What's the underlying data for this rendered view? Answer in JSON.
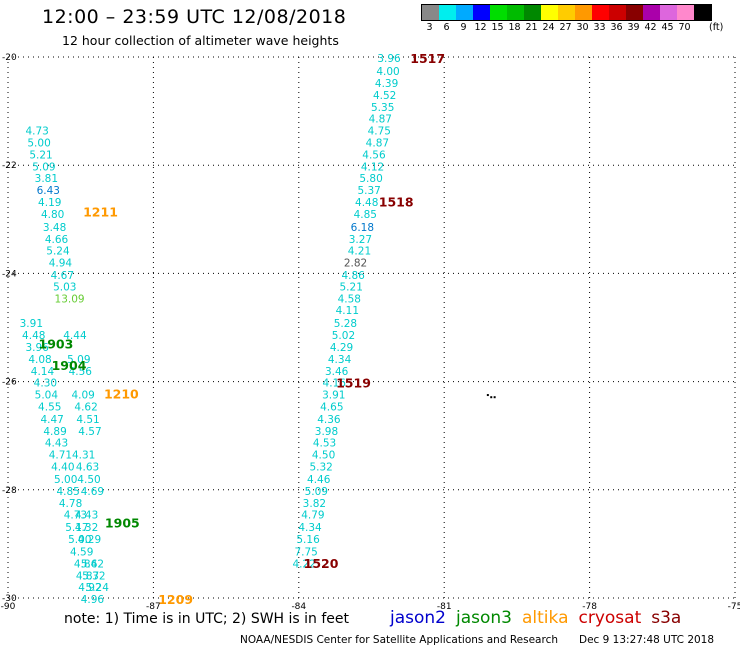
{
  "title": "12:00 – 23:59 UTC 12/08/2018",
  "subtitle": "12 hour collection of altimeter wave heights",
  "scale": {
    "unit": "(ft)",
    "levels": [
      {
        "label": "3",
        "color": "#888888"
      },
      {
        "label": "6",
        "color": "#00eeee"
      },
      {
        "label": "9",
        "color": "#00aaff"
      },
      {
        "label": "12",
        "color": "#0000ff"
      },
      {
        "label": "15",
        "color": "#00dd00"
      },
      {
        "label": "18",
        "color": "#00bb00"
      },
      {
        "label": "21",
        "color": "#008800"
      },
      {
        "label": "24",
        "color": "#ffff00"
      },
      {
        "label": "27",
        "color": "#ffcc00"
      },
      {
        "label": "30",
        "color": "#ff9900"
      },
      {
        "label": "33",
        "color": "#ff0000"
      },
      {
        "label": "36",
        "color": "#cc0000"
      },
      {
        "label": "39",
        "color": "#880000"
      },
      {
        "label": "42",
        "color": "#aa00aa"
      },
      {
        "label": "45",
        "color": "#dd66dd"
      },
      {
        "label": "70",
        "color": "#ff88cc"
      },
      {
        "label": "",
        "color": "#000000"
      }
    ]
  },
  "axes": {
    "lon_ticks": [
      "-90",
      "-87",
      "-84",
      "-81",
      "-78",
      "-75"
    ],
    "lat_ticks": [
      "-20",
      "-22",
      "-24",
      "-26",
      "-28",
      "-30"
    ]
  },
  "note": "note: 1) Time is in UTC; 2) SWH is in feet",
  "legend": [
    {
      "label": "jason2",
      "color": "#0000cc"
    },
    {
      "label": "jason3",
      "color": "#008800"
    },
    {
      "label": "altika",
      "color": "#ff9900"
    },
    {
      "label": "cryosat",
      "color": "#cc0000"
    },
    {
      "label": "s3a",
      "color": "#880000"
    }
  ],
  "credit": "NOAA/NESDIS Center for Satellite Applications and Research",
  "generated": "Dec  9 13:27:48 UTC 2018",
  "colors": {
    "cyan": "#00cccc",
    "blue": "#0077cc",
    "gray": "#555555",
    "lightgreen": "#66cc33",
    "green": "#008800",
    "orange": "#ff9900",
    "darkred": "#880000"
  },
  "swath_east": [
    {
      "v": "3.96",
      "lon": -82.38,
      "lat": -20.02,
      "c": "cyan"
    },
    {
      "v": "4.00",
      "lon": -82.4,
      "lat": -20.26,
      "c": "cyan"
    },
    {
      "v": "4.39",
      "lon": -82.43,
      "lat": -20.48,
      "c": "cyan"
    },
    {
      "v": "4.52",
      "lon": -82.47,
      "lat": -20.7,
      "c": "cyan"
    },
    {
      "v": "5.35",
      "lon": -82.51,
      "lat": -20.92,
      "c": "cyan"
    },
    {
      "v": "4.87",
      "lon": -82.56,
      "lat": -21.14,
      "c": "cyan"
    },
    {
      "v": "4.75",
      "lon": -82.58,
      "lat": -21.36,
      "c": "cyan"
    },
    {
      "v": "4.87",
      "lon": -82.62,
      "lat": -21.58,
      "c": "cyan"
    },
    {
      "v": "4.56",
      "lon": -82.69,
      "lat": -21.8,
      "c": "cyan"
    },
    {
      "v": "4.12",
      "lon": -82.72,
      "lat": -22.02,
      "c": "cyan"
    },
    {
      "v": "5.80",
      "lon": -82.75,
      "lat": -22.24,
      "c": "cyan"
    },
    {
      "v": "5.37",
      "lon": -82.79,
      "lat": -22.46,
      "c": "cyan"
    },
    {
      "v": "4.48",
      "lon": -82.84,
      "lat": -22.68,
      "c": "cyan"
    },
    {
      "v": "4.85",
      "lon": -82.87,
      "lat": -22.9,
      "c": "cyan"
    },
    {
      "v": "6.18",
      "lon": -82.93,
      "lat": -23.14,
      "c": "blue"
    },
    {
      "v": "3.27",
      "lon": -82.97,
      "lat": -23.36,
      "c": "cyan"
    },
    {
      "v": "4.21",
      "lon": -82.99,
      "lat": -23.58,
      "c": "cyan"
    },
    {
      "v": "2.82",
      "lon": -83.07,
      "lat": -23.8,
      "c": "gray"
    },
    {
      "v": "4.86",
      "lon": -83.12,
      "lat": -24.03,
      "c": "cyan"
    },
    {
      "v": "5.21",
      "lon": -83.16,
      "lat": -24.24,
      "c": "cyan"
    },
    {
      "v": "4.58",
      "lon": -83.2,
      "lat": -24.46,
      "c": "cyan"
    },
    {
      "v": "4.11",
      "lon": -83.24,
      "lat": -24.68,
      "c": "cyan"
    },
    {
      "v": "5.28",
      "lon": -83.28,
      "lat": -24.92,
      "c": "cyan"
    },
    {
      "v": "5.02",
      "lon": -83.32,
      "lat": -25.14,
      "c": "cyan"
    },
    {
      "v": "4.29",
      "lon": -83.36,
      "lat": -25.36,
      "c": "cyan"
    },
    {
      "v": "4.34",
      "lon": -83.4,
      "lat": -25.58,
      "c": "cyan"
    },
    {
      "v": "3.46",
      "lon": -83.46,
      "lat": -25.8,
      "c": "cyan"
    },
    {
      "v": "4.16",
      "lon": -83.51,
      "lat": -26.02,
      "c": "cyan"
    },
    {
      "v": "3.91",
      "lon": -83.52,
      "lat": -26.24,
      "c": "cyan"
    },
    {
      "v": "4.65",
      "lon": -83.56,
      "lat": -26.46,
      "c": "cyan"
    },
    {
      "v": "4.36",
      "lon": -83.62,
      "lat": -26.69,
      "c": "cyan"
    },
    {
      "v": "3.98",
      "lon": -83.67,
      "lat": -26.91,
      "c": "cyan"
    },
    {
      "v": "4.53",
      "lon": -83.71,
      "lat": -27.13,
      "c": "cyan"
    },
    {
      "v": "4.50",
      "lon": -83.73,
      "lat": -27.35,
      "c": "cyan"
    },
    {
      "v": "5.32",
      "lon": -83.78,
      "lat": -27.57,
      "c": "cyan"
    },
    {
      "v": "4.46",
      "lon": -83.83,
      "lat": -27.8,
      "c": "cyan"
    },
    {
      "v": "5.09",
      "lon": -83.88,
      "lat": -28.02,
      "c": "cyan"
    },
    {
      "v": "3.82",
      "lon": -83.92,
      "lat": -28.24,
      "c": "cyan"
    },
    {
      "v": "4.79",
      "lon": -83.95,
      "lat": -28.46,
      "c": "cyan"
    },
    {
      "v": "4.34",
      "lon": -84.01,
      "lat": -28.69,
      "c": "cyan"
    },
    {
      "v": "5.16",
      "lon": -84.05,
      "lat": -28.91,
      "c": "cyan"
    },
    {
      "v": "7.75",
      "lon": -84.09,
      "lat": -29.14,
      "c": "cyan"
    },
    {
      "v": "4.22",
      "lon": -84.13,
      "lat": -29.36,
      "c": "cyan"
    }
  ],
  "swath_west": [
    {
      "v": "4.73",
      "lon": -89.64,
      "lat": -21.36,
      "c": "cyan"
    },
    {
      "v": "5.00",
      "lon": -89.6,
      "lat": -21.58,
      "c": "cyan"
    },
    {
      "v": "5.21",
      "lon": -89.56,
      "lat": -21.8,
      "c": "cyan"
    },
    {
      "v": "5.09",
      "lon": -89.5,
      "lat": -22.02,
      "c": "cyan"
    },
    {
      "v": "3.81",
      "lon": -89.45,
      "lat": -22.24,
      "c": "cyan"
    },
    {
      "v": "6.43",
      "lon": -89.41,
      "lat": -22.46,
      "c": "blue"
    },
    {
      "v": "4.19",
      "lon": -89.38,
      "lat": -22.68,
      "c": "cyan"
    },
    {
      "v": "4.80",
      "lon": -89.32,
      "lat": -22.9,
      "c": "cyan"
    },
    {
      "v": "3.48",
      "lon": -89.28,
      "lat": -23.14,
      "c": "cyan"
    },
    {
      "v": "4.66",
      "lon": -89.24,
      "lat": -23.36,
      "c": "cyan"
    },
    {
      "v": "5.24",
      "lon": -89.21,
      "lat": -23.58,
      "c": "cyan"
    },
    {
      "v": "4.94",
      "lon": -89.16,
      "lat": -23.8,
      "c": "cyan"
    },
    {
      "v": "4.67",
      "lon": -89.12,
      "lat": -24.03,
      "c": "cyan"
    },
    {
      "v": "5.03",
      "lon": -89.07,
      "lat": -24.24,
      "c": "cyan"
    },
    {
      "v": "13.09",
      "lon": -89.04,
      "lat": -24.46,
      "c": "lightgreen"
    },
    {
      "v": "3.91",
      "lon": -89.76,
      "lat": -24.92,
      "c": "cyan"
    },
    {
      "v": "4.48",
      "lon": -89.71,
      "lat": -25.14,
      "c": "cyan"
    },
    {
      "v": "4.44",
      "lon": -88.86,
      "lat": -25.14,
      "c": "cyan"
    },
    {
      "v": "3.96",
      "lon": -89.64,
      "lat": -25.36,
      "c": "cyan"
    },
    {
      "v": "4.08",
      "lon": -89.58,
      "lat": -25.58,
      "c": "cyan"
    },
    {
      "v": "5.09",
      "lon": -88.78,
      "lat": -25.58,
      "c": "cyan"
    },
    {
      "v": "4.14",
      "lon": -89.53,
      "lat": -25.8,
      "c": "cyan"
    },
    {
      "v": "4.56",
      "lon": -88.75,
      "lat": -25.8,
      "c": "cyan"
    },
    {
      "v": "4.30",
      "lon": -89.47,
      "lat": -26.02,
      "c": "cyan"
    },
    {
      "v": "5.04",
      "lon": -89.45,
      "lat": -26.24,
      "c": "cyan"
    },
    {
      "v": "4.09",
      "lon": -88.69,
      "lat": -26.24,
      "c": "cyan"
    },
    {
      "v": "4.55",
      "lon": -89.38,
      "lat": -26.46,
      "c": "cyan"
    },
    {
      "v": "4.62",
      "lon": -88.63,
      "lat": -26.46,
      "c": "cyan"
    },
    {
      "v": "4.47",
      "lon": -89.33,
      "lat": -26.69,
      "c": "cyan"
    },
    {
      "v": "4.51",
      "lon": -88.59,
      "lat": -26.69,
      "c": "cyan"
    },
    {
      "v": "4.89",
      "lon": -89.27,
      "lat": -26.91,
      "c": "cyan"
    },
    {
      "v": "4.57",
      "lon": -88.55,
      "lat": -26.91,
      "c": "cyan"
    },
    {
      "v": "4.43",
      "lon": -89.24,
      "lat": -27.13,
      "c": "cyan"
    },
    {
      "v": "4.71",
      "lon": -89.16,
      "lat": -27.35,
      "c": "cyan"
    },
    {
      "v": "4.31",
      "lon": -88.68,
      "lat": -27.35,
      "c": "cyan"
    },
    {
      "v": "4.40",
      "lon": -89.11,
      "lat": -27.57,
      "c": "cyan"
    },
    {
      "v": "4.63",
      "lon": -88.6,
      "lat": -27.57,
      "c": "cyan"
    },
    {
      "v": "5.00",
      "lon": -89.05,
      "lat": -27.8,
      "c": "cyan"
    },
    {
      "v": "4.50",
      "lon": -88.57,
      "lat": -27.8,
      "c": "cyan"
    },
    {
      "v": "4.85",
      "lon": -89.0,
      "lat": -28.02,
      "c": "cyan"
    },
    {
      "v": "4.69",
      "lon": -88.5,
      "lat": -28.02,
      "c": "cyan"
    },
    {
      "v": "4.78",
      "lon": -88.95,
      "lat": -28.24,
      "c": "cyan"
    },
    {
      "v": "4.73",
      "lon": -88.85,
      "lat": -28.46,
      "c": "cyan"
    },
    {
      "v": "4.43",
      "lon": -88.62,
      "lat": -28.46,
      "c": "cyan"
    },
    {
      "v": "5.17",
      "lon": -88.82,
      "lat": -28.69,
      "c": "cyan"
    },
    {
      "v": "4.32",
      "lon": -88.62,
      "lat": -28.69,
      "c": "cyan"
    },
    {
      "v": "5.00",
      "lon": -88.76,
      "lat": -28.91,
      "c": "cyan"
    },
    {
      "v": "4.29",
      "lon": -88.56,
      "lat": -28.91,
      "c": "cyan"
    },
    {
      "v": "4.59",
      "lon": -88.72,
      "lat": -29.14,
      "c": "cyan"
    },
    {
      "v": "4.84",
      "lon": -88.64,
      "lat": -29.36,
      "c": "cyan"
    },
    {
      "v": "5.62",
      "lon": -88.5,
      "lat": -29.36,
      "c": "cyan"
    },
    {
      "v": "4.87",
      "lon": -88.6,
      "lat": -29.58,
      "c": "cyan"
    },
    {
      "v": "5.32",
      "lon": -88.47,
      "lat": -29.58,
      "c": "cyan"
    },
    {
      "v": "4.92",
      "lon": -88.55,
      "lat": -29.8,
      "c": "cyan"
    },
    {
      "v": "5.24",
      "lon": -88.4,
      "lat": -29.8,
      "c": "cyan"
    },
    {
      "v": "4.96",
      "lon": -88.5,
      "lat": -30.02,
      "c": "cyan"
    }
  ],
  "pass_labels": [
    {
      "text": "1517",
      "lon": -81.7,
      "lat": -20.02,
      "c": "darkred"
    },
    {
      "text": "1518",
      "lon": -82.35,
      "lat": -22.67,
      "c": "darkred"
    },
    {
      "text": "1519",
      "lon": -83.23,
      "lat": -26.02,
      "c": "darkred"
    },
    {
      "text": "1520",
      "lon": -83.9,
      "lat": -29.35,
      "c": "darkred"
    },
    {
      "text": "1211",
      "lon": -88.45,
      "lat": -22.86,
      "c": "orange"
    },
    {
      "text": "1210",
      "lon": -88.02,
      "lat": -26.22,
      "c": "orange"
    },
    {
      "text": "1209",
      "lon": -86.9,
      "lat": -30.02,
      "c": "orange"
    },
    {
      "text": "1903",
      "lon": -89.37,
      "lat": -25.3,
      "c": "green"
    },
    {
      "text": "1904",
      "lon": -89.1,
      "lat": -25.69,
      "c": "green"
    },
    {
      "text": "1905",
      "lon": -88.0,
      "lat": -28.6,
      "c": "green"
    }
  ],
  "stray_marks": [
    {
      "lon": -80.12,
      "lat": -26.23
    },
    {
      "lon": -80.05,
      "lat": -26.27
    },
    {
      "lon": -79.98,
      "lat": -26.27
    }
  ]
}
